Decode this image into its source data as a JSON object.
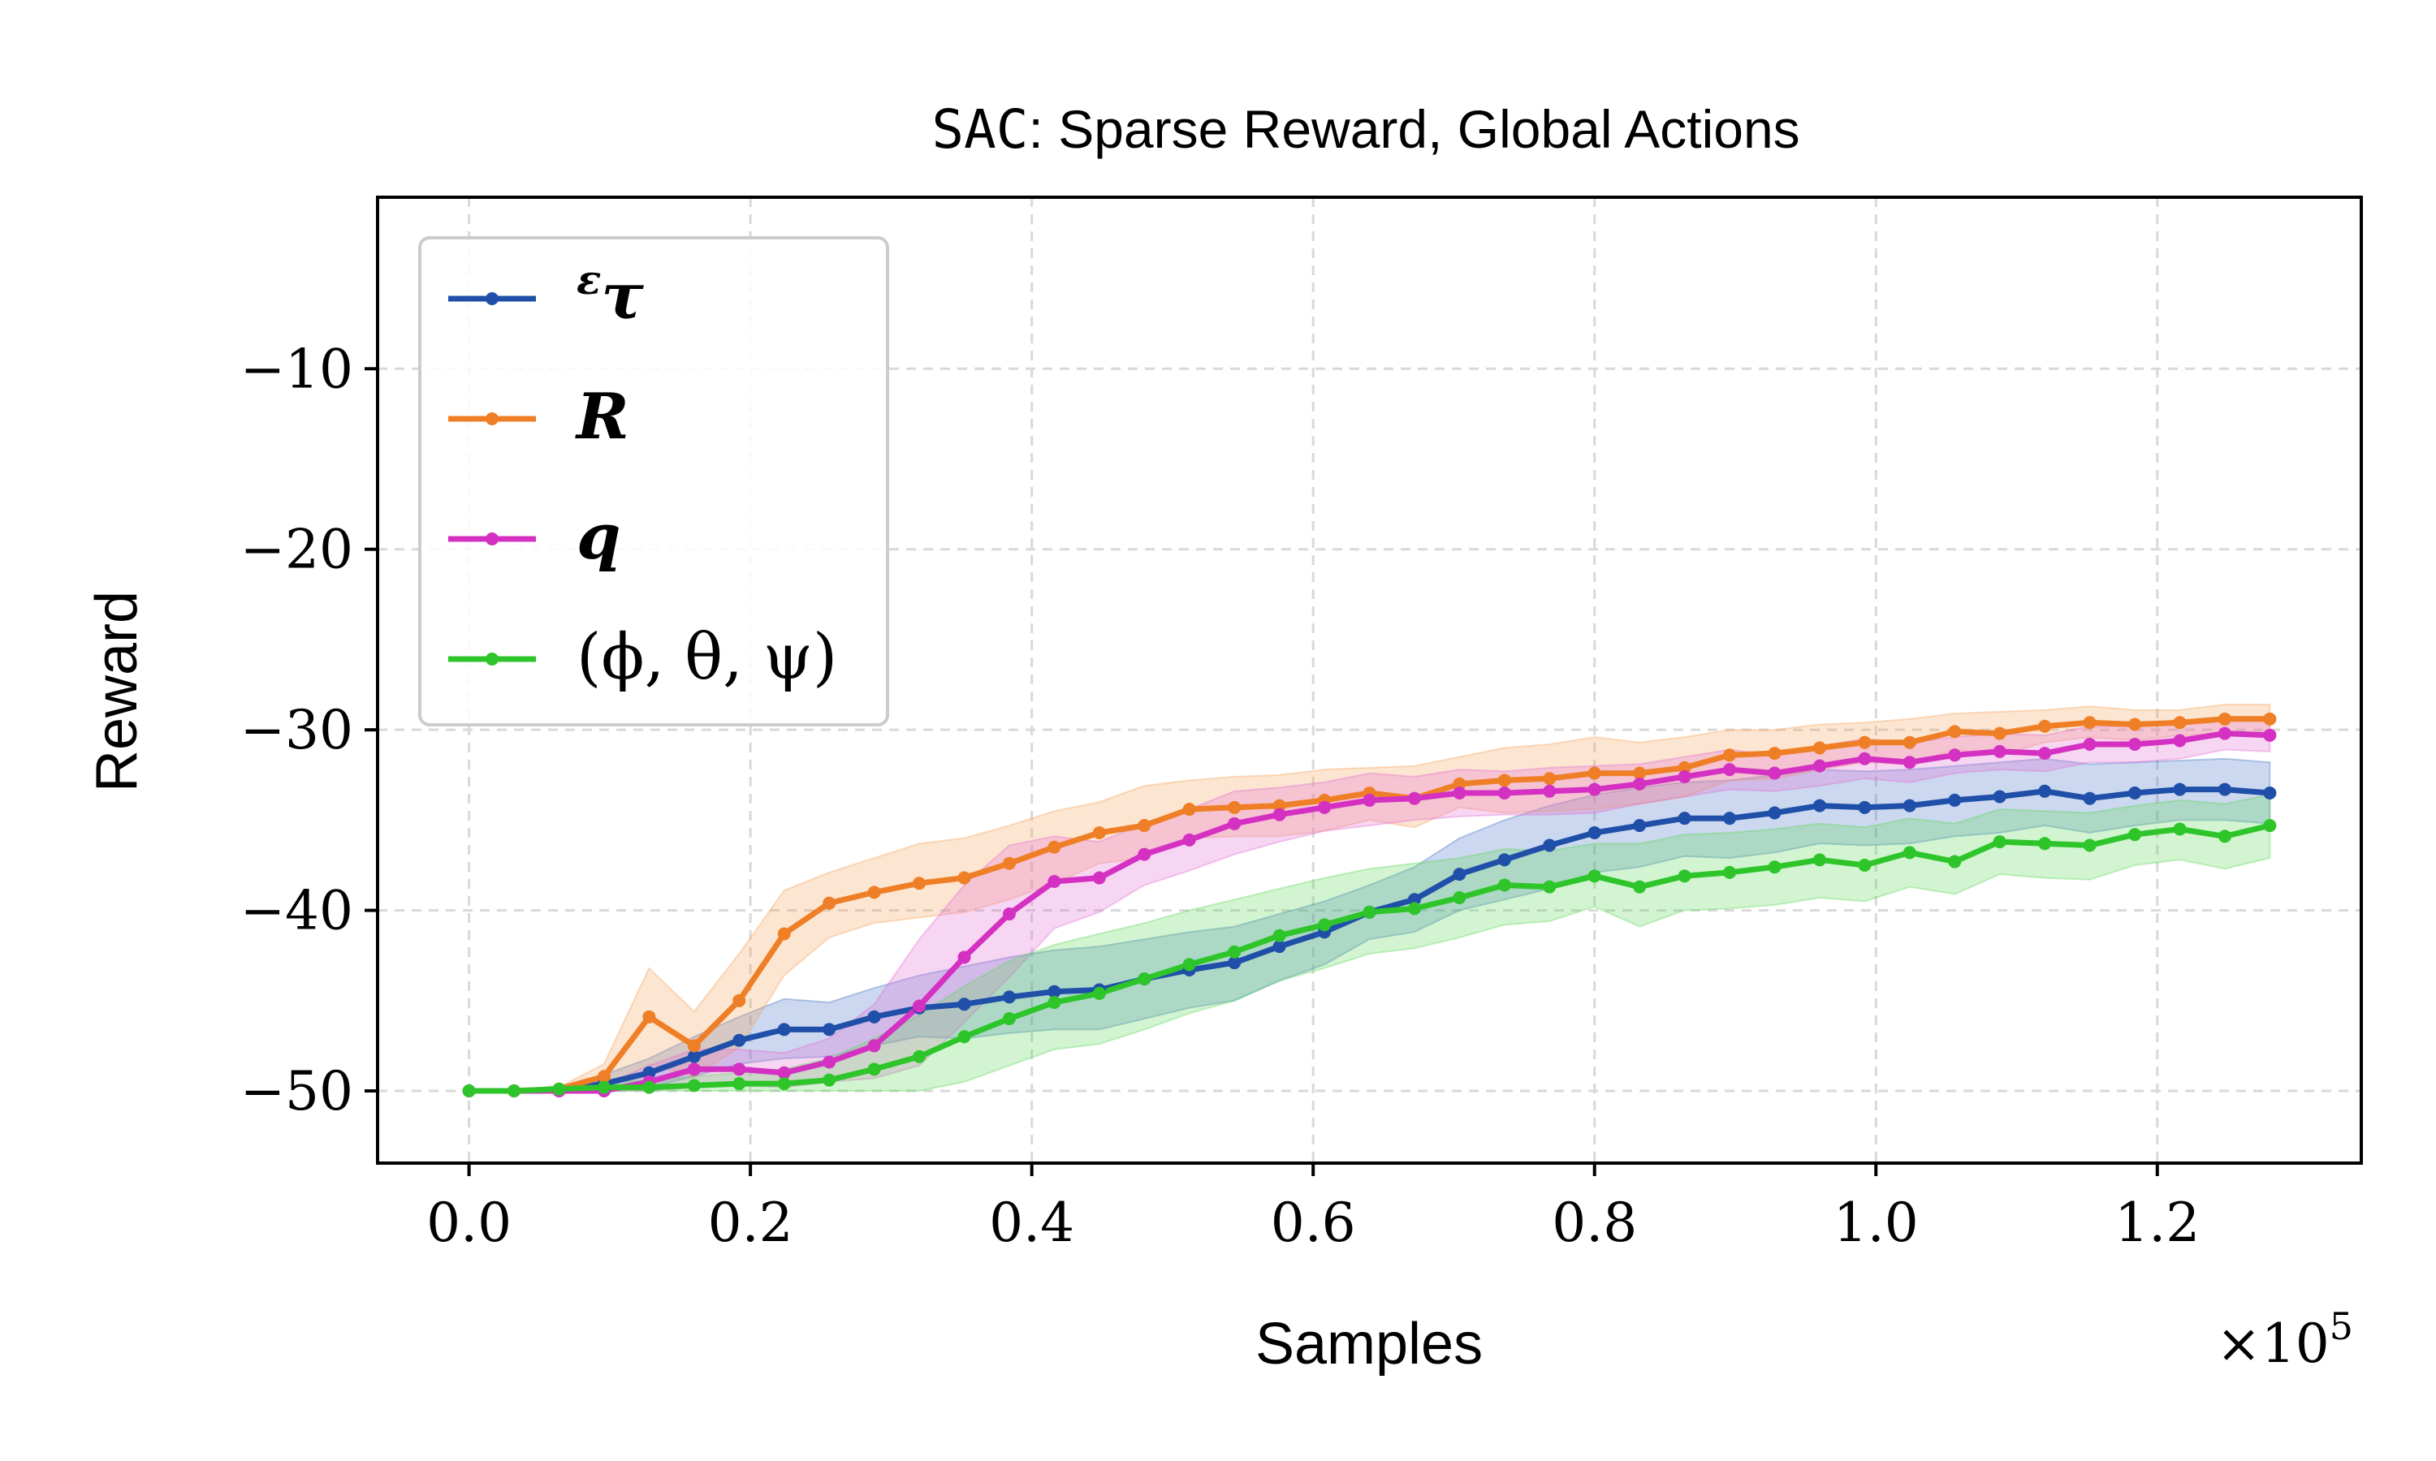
{
  "chart_data": {
    "type": "line",
    "title_mono": "SAC",
    "title_rest": ": Sparse Reward, Global Actions",
    "xlabel": "Samples",
    "ylabel": "Reward",
    "x_multiplier": "×10",
    "x_multiplier_exp": "5",
    "xlim": [
      -0.065,
      1.345
    ],
    "ylim": [
      -54.0,
      -0.5
    ],
    "xticks": [
      0.0,
      0.2,
      0.4,
      0.6,
      0.8,
      1.0,
      1.2
    ],
    "xtick_labels": [
      "0.0",
      "0.2",
      "0.4",
      "0.6",
      "0.8",
      "1.0",
      "1.2"
    ],
    "yticks": [
      -10,
      -20,
      -30,
      -40,
      -50
    ],
    "ytick_labels": [
      "−10",
      "−20",
      "−30",
      "−40",
      "−50"
    ],
    "grid": true,
    "legend_position": "top-left",
    "x": [
      0.0,
      0.032,
      0.064,
      0.096,
      0.128,
      0.16,
      0.192,
      0.224,
      0.256,
      0.288,
      0.32,
      0.352,
      0.384,
      0.416,
      0.448,
      0.48,
      0.512,
      0.544,
      0.576,
      0.608,
      0.64,
      0.672,
      0.704,
      0.736,
      0.768,
      0.8,
      0.832,
      0.864,
      0.896,
      0.928,
      0.96,
      0.992,
      1.024,
      1.056,
      1.088,
      1.12,
      1.152,
      1.184,
      1.216,
      1.248,
      1.28
    ],
    "series": [
      {
        "name": "ετ",
        "legend_main": "τ",
        "legend_sup": "ε",
        "color": "#1f4fa8",
        "fill": "#4472c4",
        "values": [
          -50,
          -50,
          -50,
          -49.6,
          -49.0,
          -48.1,
          -47.2,
          -46.6,
          -46.6,
          -45.9,
          -45.4,
          -45.2,
          -44.8,
          -44.5,
          -44.4,
          -43.8,
          -43.3,
          -42.9,
          -42.0,
          -41.2,
          -40.1,
          -39.4,
          -38.0,
          -37.2,
          -36.4,
          -35.7,
          -35.3,
          -34.9,
          -34.9,
          -34.6,
          -34.2,
          -34.3,
          -34.2,
          -33.9,
          -33.7,
          -33.4,
          -33.8,
          -33.5,
          -33.3,
          -33.3,
          -33.5
        ],
        "upper": [
          -50,
          -50,
          -50,
          -49.1,
          -48.2,
          -47.0,
          -45.9,
          -44.9,
          -45.1,
          -44.3,
          -43.6,
          -43.1,
          -42.6,
          -42.2,
          -42.0,
          -41.6,
          -41.2,
          -40.9,
          -40.2,
          -39.5,
          -38.6,
          -37.6,
          -36.0,
          -35.0,
          -34.2,
          -33.6,
          -33.2,
          -32.9,
          -32.8,
          -32.5,
          -32.2,
          -32.3,
          -32.2,
          -32.0,
          -31.8,
          -31.6,
          -31.9,
          -31.8,
          -31.7,
          -31.6,
          -31.8
        ],
        "lower": [
          -50,
          -50,
          -50,
          -50,
          -49.8,
          -49.2,
          -48.5,
          -48.2,
          -48.1,
          -47.5,
          -47.0,
          -47.1,
          -46.8,
          -46.6,
          -46.6,
          -46.0,
          -45.4,
          -45.0,
          -43.9,
          -43.0,
          -41.6,
          -41.2,
          -40.0,
          -39.4,
          -38.8,
          -37.9,
          -37.6,
          -37.0,
          -37.1,
          -36.8,
          -36.3,
          -36.4,
          -36.3,
          -35.9,
          -35.7,
          -35.3,
          -35.7,
          -35.3,
          -35.0,
          -35.0,
          -35.2
        ]
      },
      {
        "name": "R",
        "legend_main": "R",
        "legend_sup": "",
        "color": "#ef7f26",
        "fill": "#f5a05a",
        "values": [
          -50,
          -50,
          -49.9,
          -49.2,
          -45.9,
          -47.5,
          -45.0,
          -41.3,
          -39.6,
          -39.0,
          -38.5,
          -38.2,
          -37.4,
          -36.5,
          -35.7,
          -35.3,
          -34.4,
          -34.3,
          -34.2,
          -33.9,
          -33.5,
          -33.8,
          -33.0,
          -32.8,
          -32.7,
          -32.4,
          -32.4,
          -32.1,
          -31.4,
          -31.3,
          -31.0,
          -30.7,
          -30.7,
          -30.1,
          -30.2,
          -29.8,
          -29.6,
          -29.7,
          -29.6,
          -29.4,
          -29.4
        ],
        "upper": [
          -50,
          -50,
          -49.8,
          -48.5,
          -43.2,
          -45.6,
          -42.4,
          -38.9,
          -37.9,
          -37.1,
          -36.3,
          -36.0,
          -35.3,
          -34.5,
          -34.0,
          -33.1,
          -32.8,
          -32.6,
          -32.5,
          -32.2,
          -32.1,
          -32.0,
          -31.5,
          -31.0,
          -30.8,
          -30.4,
          -30.7,
          -30.4,
          -30.0,
          -30.0,
          -29.7,
          -29.6,
          -29.4,
          -29.1,
          -29.0,
          -28.9,
          -28.7,
          -28.9,
          -28.9,
          -28.6,
          -28.6
        ],
        "lower": [
          -50,
          -50,
          -50,
          -49.8,
          -48.5,
          -49.2,
          -47.6,
          -43.6,
          -41.5,
          -40.7,
          -40.4,
          -40.1,
          -39.4,
          -38.5,
          -37.4,
          -37.1,
          -36.0,
          -35.9,
          -35.9,
          -35.6,
          -35.0,
          -35.4,
          -34.3,
          -34.6,
          -34.5,
          -34.4,
          -34.1,
          -33.7,
          -32.8,
          -32.7,
          -32.2,
          -31.8,
          -31.9,
          -31.1,
          -31.4,
          -30.7,
          -30.4,
          -30.6,
          -30.3,
          -30.3,
          -30.2
        ]
      },
      {
        "name": "q",
        "legend_main": "q",
        "legend_sup": "",
        "color": "#d431c2",
        "fill": "#e36bd5",
        "values": [
          -50,
          -50,
          -50,
          -50,
          -49.5,
          -48.8,
          -48.8,
          -49.0,
          -48.4,
          -47.5,
          -45.3,
          -42.6,
          -40.2,
          -38.4,
          -38.2,
          -36.9,
          -36.1,
          -35.2,
          -34.7,
          -34.3,
          -33.9,
          -33.8,
          -33.5,
          -33.5,
          -33.4,
          -33.3,
          -33.0,
          -32.6,
          -32.2,
          -32.4,
          -32.0,
          -31.6,
          -31.8,
          -31.4,
          -31.2,
          -31.3,
          -30.8,
          -30.8,
          -30.6,
          -30.2,
          -30.3
        ],
        "upper": [
          -50,
          -50,
          -50,
          -49.7,
          -48.6,
          -47.7,
          -47.7,
          -47.9,
          -47.1,
          -45.2,
          -41.6,
          -38.6,
          -36.4,
          -35.9,
          -36.2,
          -35.2,
          -34.4,
          -33.4,
          -33.2,
          -32.9,
          -32.4,
          -32.6,
          -32.2,
          -32.3,
          -32.1,
          -32.0,
          -31.9,
          -31.5,
          -31.1,
          -31.4,
          -30.9,
          -30.5,
          -30.7,
          -30.4,
          -30.2,
          -30.3,
          -29.8,
          -29.8,
          -29.6,
          -29.3,
          -29.4
        ],
        "lower": [
          -50,
          -50,
          -50,
          -50,
          -50,
          -49.8,
          -49.7,
          -49.8,
          -49.5,
          -49.3,
          -48.6,
          -46.2,
          -43.7,
          -41.0,
          -40.1,
          -38.6,
          -37.8,
          -36.9,
          -36.2,
          -35.6,
          -35.3,
          -35.0,
          -34.8,
          -34.7,
          -34.7,
          -34.6,
          -34.1,
          -33.7,
          -33.3,
          -33.4,
          -33.1,
          -32.7,
          -32.9,
          -32.4,
          -32.2,
          -32.3,
          -31.8,
          -31.8,
          -31.6,
          -31.1,
          -31.2
        ]
      },
      {
        "name": "(ϕ, θ, ψ)",
        "legend_main": "(ϕ, θ, ψ)",
        "legend_sup": "",
        "color": "#2ec52a",
        "fill": "#5fd75a",
        "values": [
          -50,
          -50,
          -49.9,
          -49.8,
          -49.8,
          -49.7,
          -49.6,
          -49.6,
          -49.4,
          -48.8,
          -48.1,
          -47.0,
          -46.0,
          -45.1,
          -44.6,
          -43.8,
          -43.0,
          -42.3,
          -41.4,
          -40.8,
          -40.1,
          -39.9,
          -39.3,
          -38.6,
          -38.7,
          -38.1,
          -38.7,
          -38.1,
          -37.9,
          -37.6,
          -37.2,
          -37.5,
          -36.8,
          -37.3,
          -36.2,
          -36.3,
          -36.4,
          -35.8,
          -35.5,
          -35.9,
          -35.3
        ],
        "upper": [
          -50,
          -50,
          -49.7,
          -49.5,
          -49.4,
          -49.2,
          -49.0,
          -48.8,
          -48.2,
          -47.1,
          -45.8,
          -44.2,
          -42.8,
          -41.9,
          -41.3,
          -40.7,
          -40.0,
          -39.4,
          -38.8,
          -38.2,
          -37.7,
          -37.4,
          -37.1,
          -36.6,
          -36.7,
          -36.3,
          -36.3,
          -35.8,
          -35.7,
          -35.5,
          -35.2,
          -35.4,
          -34.9,
          -35.2,
          -34.4,
          -34.5,
          -34.6,
          -34.2,
          -33.9,
          -34.1,
          -33.6
        ],
        "lower": [
          -50,
          -50,
          -50,
          -50,
          -50,
          -50,
          -50,
          -50,
          -50,
          -50,
          -50,
          -49.5,
          -48.6,
          -47.7,
          -47.4,
          -46.6,
          -45.7,
          -45.0,
          -43.9,
          -43.2,
          -42.4,
          -42.1,
          -41.5,
          -40.8,
          -40.6,
          -39.8,
          -40.9,
          -40.0,
          -39.9,
          -39.7,
          -39.3,
          -39.5,
          -38.7,
          -39.1,
          -38.0,
          -38.2,
          -38.3,
          -37.5,
          -37.2,
          -37.7,
          -37.1
        ]
      }
    ]
  }
}
